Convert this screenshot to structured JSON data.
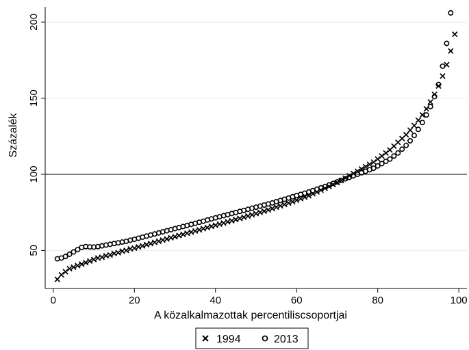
{
  "chart_data": {
    "type": "scatter",
    "xlabel": "A közalkalmazottak percentiliscsoportjai",
    "ylabel": "Százalék",
    "xlim": [
      -2,
      102
    ],
    "ylim": [
      25,
      210
    ],
    "xticks": [
      0,
      20,
      40,
      60,
      80,
      100
    ],
    "yticks": [
      50,
      100,
      150,
      200
    ],
    "reference_line": 100,
    "grid": "horizontal",
    "legend_position": "bottom-center",
    "series": [
      {
        "name": "1994",
        "marker": "x",
        "points": [
          [
            1,
            31
          ],
          [
            2,
            34
          ],
          [
            3,
            36
          ],
          [
            4,
            38
          ],
          [
            5,
            39
          ],
          [
            6,
            40
          ],
          [
            7,
            41
          ],
          [
            8,
            42
          ],
          [
            9,
            43
          ],
          [
            10,
            44
          ],
          [
            11,
            45
          ],
          [
            12,
            45.5
          ],
          [
            13,
            46.5
          ],
          [
            14,
            47
          ],
          [
            15,
            48
          ],
          [
            16,
            48.5
          ],
          [
            17,
            49.5
          ],
          [
            18,
            50
          ],
          [
            19,
            51
          ],
          [
            20,
            51.5
          ],
          [
            21,
            52.3
          ],
          [
            22,
            53
          ],
          [
            23,
            53.8
          ],
          [
            24,
            54.5
          ],
          [
            25,
            55.3
          ],
          [
            26,
            56
          ],
          [
            27,
            56.8
          ],
          [
            28,
            57.5
          ],
          [
            29,
            58.3
          ],
          [
            30,
            59
          ],
          [
            31,
            59.8
          ],
          [
            32,
            60.5
          ],
          [
            33,
            61.3
          ],
          [
            34,
            62
          ],
          [
            35,
            62.8
          ],
          [
            36,
            63.5
          ],
          [
            37,
            64.3
          ],
          [
            38,
            65
          ],
          [
            39,
            65.8
          ],
          [
            40,
            66.5
          ],
          [
            41,
            67.3
          ],
          [
            42,
            68
          ],
          [
            43,
            68.8
          ],
          [
            44,
            69.5
          ],
          [
            45,
            70.3
          ],
          [
            46,
            71
          ],
          [
            47,
            71.8
          ],
          [
            48,
            72.6
          ],
          [
            49,
            73.4
          ],
          [
            50,
            74.2
          ],
          [
            51,
            75
          ],
          [
            52,
            75.8
          ],
          [
            53,
            76.6
          ],
          [
            54,
            77.5
          ],
          [
            55,
            78.4
          ],
          [
            56,
            79.3
          ],
          [
            57,
            80.2
          ],
          [
            58,
            81.1
          ],
          [
            59,
            82
          ],
          [
            60,
            83
          ],
          [
            61,
            84
          ],
          [
            62,
            85
          ],
          [
            63,
            86
          ],
          [
            64,
            87.2
          ],
          [
            65,
            88.4
          ],
          [
            66,
            89.6
          ],
          [
            67,
            90.8
          ],
          [
            68,
            92
          ],
          [
            69,
            93.3
          ],
          [
            70,
            94.6
          ],
          [
            71,
            96
          ],
          [
            72,
            97.5
          ],
          [
            73,
            99
          ],
          [
            74,
            100.5
          ],
          [
            75,
            102
          ],
          [
            76,
            103.5
          ],
          [
            77,
            105
          ],
          [
            78,
            106.5
          ],
          [
            79,
            108
          ],
          [
            80,
            110
          ],
          [
            81,
            112
          ],
          [
            82,
            114
          ],
          [
            83,
            116
          ],
          [
            84,
            118.5
          ],
          [
            85,
            121
          ],
          [
            86,
            123.5
          ],
          [
            87,
            126
          ],
          [
            88,
            129
          ],
          [
            89,
            132
          ],
          [
            90,
            135.5
          ],
          [
            91,
            139
          ],
          [
            92,
            143
          ],
          [
            93,
            147.5
          ],
          [
            94,
            152.5
          ],
          [
            95,
            158
          ],
          [
            96,
            164.5
          ],
          [
            97,
            172
          ],
          [
            98,
            181
          ],
          [
            99,
            192
          ]
        ]
      },
      {
        "name": "2013",
        "marker": "circle",
        "points": [
          [
            1,
            44.5
          ],
          [
            2,
            45
          ],
          [
            3,
            46
          ],
          [
            4,
            47.5
          ],
          [
            5,
            49
          ],
          [
            6,
            50.5
          ],
          [
            7,
            52
          ],
          [
            8,
            52.5
          ],
          [
            9,
            52.3
          ],
          [
            10,
            52.2
          ],
          [
            11,
            52.5
          ],
          [
            12,
            53
          ],
          [
            13,
            53.5
          ],
          [
            14,
            54
          ],
          [
            15,
            54.5
          ],
          [
            16,
            55
          ],
          [
            17,
            55.5
          ],
          [
            18,
            56
          ],
          [
            19,
            56.7
          ],
          [
            20,
            57.3
          ],
          [
            21,
            58
          ],
          [
            22,
            58.7
          ],
          [
            23,
            59.4
          ],
          [
            24,
            60.1
          ],
          [
            25,
            60.8
          ],
          [
            26,
            61.5
          ],
          [
            27,
            62.2
          ],
          [
            28,
            62.9
          ],
          [
            29,
            63.6
          ],
          [
            30,
            64.3
          ],
          [
            31,
            65
          ],
          [
            32,
            65.7
          ],
          [
            33,
            66.4
          ],
          [
            34,
            67.1
          ],
          [
            35,
            67.8
          ],
          [
            36,
            68.5
          ],
          [
            37,
            69.2
          ],
          [
            38,
            70
          ],
          [
            39,
            70.7
          ],
          [
            40,
            71.4
          ],
          [
            41,
            72.1
          ],
          [
            42,
            72.8
          ],
          [
            43,
            73.5
          ],
          [
            44,
            74.2
          ],
          [
            45,
            74.9
          ],
          [
            46,
            75.6
          ],
          [
            47,
            76.3
          ],
          [
            48,
            77
          ],
          [
            49,
            77.7
          ],
          [
            50,
            78.4
          ],
          [
            51,
            79.1
          ],
          [
            52,
            79.8
          ],
          [
            53,
            80.5
          ],
          [
            54,
            81.2
          ],
          [
            55,
            82
          ],
          [
            56,
            82.8
          ],
          [
            57,
            83.6
          ],
          [
            58,
            84.4
          ],
          [
            59,
            85.2
          ],
          [
            60,
            86
          ],
          [
            61,
            86.8
          ],
          [
            62,
            87.6
          ],
          [
            63,
            88.4
          ],
          [
            64,
            89.3
          ],
          [
            65,
            90.2
          ],
          [
            66,
            91.1
          ],
          [
            67,
            92
          ],
          [
            68,
            93
          ],
          [
            69,
            94
          ],
          [
            70,
            95
          ],
          [
            71,
            96
          ],
          [
            72,
            97
          ],
          [
            73,
            98
          ],
          [
            74,
            99
          ],
          [
            75,
            100
          ],
          [
            76,
            101
          ],
          [
            77,
            102
          ],
          [
            78,
            103
          ],
          [
            79,
            104
          ],
          [
            80,
            105.5
          ],
          [
            81,
            107
          ],
          [
            82,
            108.5
          ],
          [
            83,
            110
          ],
          [
            84,
            112
          ],
          [
            85,
            114
          ],
          [
            86,
            116.5
          ],
          [
            87,
            119
          ],
          [
            88,
            122
          ],
          [
            89,
            125.5
          ],
          [
            90,
            129.5
          ],
          [
            91,
            134
          ],
          [
            92,
            139
          ],
          [
            93,
            144.5
          ],
          [
            94,
            151
          ],
          [
            95,
            159
          ],
          [
            96,
            171
          ],
          [
            97,
            186
          ],
          [
            98,
            206
          ]
        ]
      }
    ]
  },
  "legend": {
    "items": [
      {
        "label": "1994",
        "marker": "x"
      },
      {
        "label": "2013",
        "marker": "circle"
      }
    ]
  }
}
